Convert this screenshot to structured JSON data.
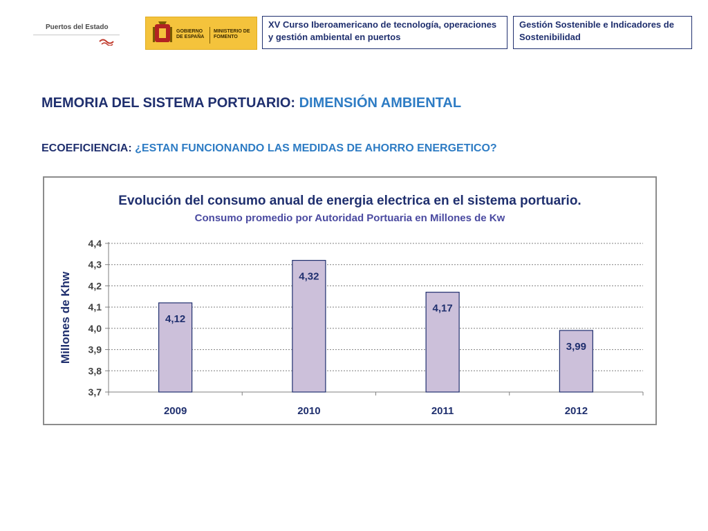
{
  "header": {
    "logo_puertos": "Puertos del Estado",
    "logo_gobierno": "GOBIERNO DE ESPAÑA",
    "logo_ministerio": "MINISTERIO DE FOMENTO",
    "course_title": "XV Curso Iberoamericano de tecnología, operaciones y gestión ambiental en puertos",
    "module_title": "Gestión Sostenible e Indicadores de Sostenibilidad"
  },
  "heading": {
    "line1_prefix": "MEMORIA DEL SISTEMA PORTUARIO: ",
    "line1_highlight": "DIMENSIÓN AMBIENTAL",
    "line2_prefix": "ECOEFICIENCIA: ",
    "line2_highlight": "¿ESTAN FUNCIONANDO LAS MEDIDAS DE AHORRO ENERGETICO?"
  },
  "colors": {
    "navy": "#1f2f6e",
    "highlight_blue": "#2e7cc4",
    "bar_fill": "#ccc0da",
    "bar_stroke": "#1f2f6e"
  },
  "chart_data": {
    "type": "bar",
    "title": "Evolución del consumo anual de energia electrica en el sistema portuario.",
    "subtitle": "Consumo promedio por Autoridad Portuaria en Millones de Kw",
    "xlabel": "",
    "ylabel": "Millones de Khw",
    "categories": [
      "2009",
      "2010",
      "2011",
      "2012"
    ],
    "values": [
      4.12,
      4.32,
      4.17,
      3.99
    ],
    "data_labels": [
      "4,12",
      "4,32",
      "4,17",
      "3,99"
    ],
    "ylim": [
      3.7,
      4.4
    ],
    "yticks": [
      3.7,
      3.8,
      3.9,
      4.0,
      4.1,
      4.2,
      4.3,
      4.4
    ],
    "ytick_labels": [
      "3,7",
      "3,8",
      "3,9",
      "4,0",
      "4,1",
      "4,2",
      "4,3",
      "4,4"
    ],
    "grid": true,
    "legend": "none"
  }
}
